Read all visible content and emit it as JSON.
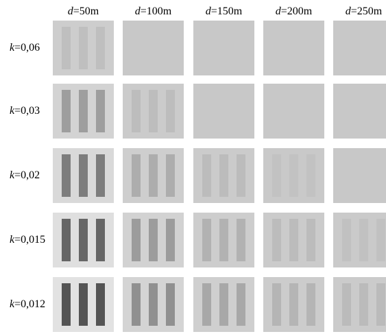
{
  "columns": [
    {
      "var": "d",
      "eq": "=50m"
    },
    {
      "var": "d",
      "eq": "=100m"
    },
    {
      "var": "d",
      "eq": "=150m"
    },
    {
      "var": "d",
      "eq": "=200m"
    },
    {
      "var": "d",
      "eq": "=250m"
    }
  ],
  "rows": [
    {
      "var": "k",
      "eq": "=0,06"
    },
    {
      "var": "k",
      "eq": "=0,03"
    },
    {
      "var": "k",
      "eq": "=0,02"
    },
    {
      "var": "k",
      "eq": "=0,015"
    },
    {
      "var": "k",
      "eq": "=0,012"
    }
  ],
  "tiles": [
    [
      {
        "bg": "#cdcdcd",
        "bar": "#bfbfbf",
        "bars_visible": true
      },
      {
        "bg": "#c8c8c8",
        "bar": "#c8c8c8",
        "bars_visible": false
      },
      {
        "bg": "#c8c8c8",
        "bar": "#c8c8c8",
        "bars_visible": false
      },
      {
        "bg": "#c8c8c8",
        "bar": "#c8c8c8",
        "bars_visible": false
      },
      {
        "bg": "#c8c8c8",
        "bar": "#c8c8c8",
        "bars_visible": false
      }
    ],
    [
      {
        "bg": "#d3d3d3",
        "bar": "#9e9e9e",
        "bars_visible": true
      },
      {
        "bg": "#cbcbcb",
        "bar": "#bdbdbd",
        "bars_visible": true
      },
      {
        "bg": "#c8c8c8",
        "bar": "#c8c8c8",
        "bars_visible": false
      },
      {
        "bg": "#c8c8c8",
        "bar": "#c8c8c8",
        "bars_visible": false
      },
      {
        "bg": "#c8c8c8",
        "bar": "#c8c8c8",
        "bars_visible": false
      }
    ],
    [
      {
        "bg": "#d9d9d9",
        "bar": "#7d7d7d",
        "bars_visible": true
      },
      {
        "bg": "#cecece",
        "bar": "#adadad",
        "bars_visible": true
      },
      {
        "bg": "#cbcbcb",
        "bar": "#bcbcbc",
        "bars_visible": true
      },
      {
        "bg": "#c9c9c9",
        "bar": "#c2c2c2",
        "bars_visible": true
      },
      {
        "bg": "#c8c8c8",
        "bar": "#c8c8c8",
        "bars_visible": false
      }
    ],
    [
      {
        "bg": "#dfdfdf",
        "bar": "#666666",
        "bars_visible": true
      },
      {
        "bg": "#d2d2d2",
        "bar": "#9c9c9c",
        "bars_visible": true
      },
      {
        "bg": "#cdcdcd",
        "bar": "#b2b2b2",
        "bars_visible": true
      },
      {
        "bg": "#cbcbcb",
        "bar": "#bcbcbc",
        "bars_visible": true
      },
      {
        "bg": "#cacaca",
        "bar": "#c1c1c1",
        "bars_visible": true
      }
    ],
    [
      {
        "bg": "#e2e2e2",
        "bar": "#545454",
        "bars_visible": true
      },
      {
        "bg": "#d4d4d4",
        "bar": "#909090",
        "bars_visible": true
      },
      {
        "bg": "#cfcfcf",
        "bar": "#a8a8a8",
        "bars_visible": true
      },
      {
        "bg": "#cccccc",
        "bar": "#b5b5b5",
        "bars_visible": true
      },
      {
        "bg": "#cbcbcb",
        "bar": "#bbbbbb",
        "bars_visible": true
      }
    ]
  ]
}
